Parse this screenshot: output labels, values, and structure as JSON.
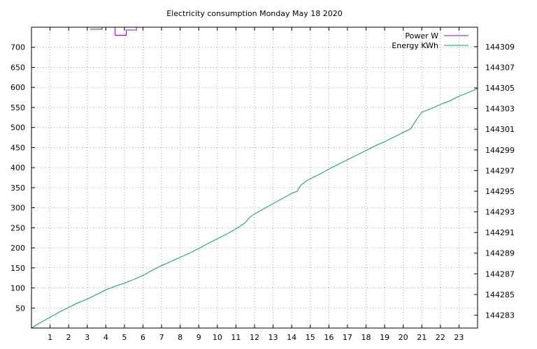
{
  "chart_data": {
    "type": "line",
    "title": "Electricity consumption Monday May 18 2020",
    "xlabel": "",
    "ylabel": "",
    "y2label": "",
    "xlim": [
      0,
      24
    ],
    "ylim": [
      0,
      750
    ],
    "y2lim": [
      144281.75,
      144310.88
    ],
    "grid": true,
    "legend_position": "top-right",
    "x_ticks": [
      1,
      2,
      3,
      4,
      5,
      6,
      7,
      8,
      9,
      10,
      11,
      12,
      13,
      14,
      15,
      16,
      17,
      18,
      19,
      20,
      21,
      22,
      23
    ],
    "y_ticks": [
      50,
      100,
      150,
      200,
      250,
      300,
      350,
      400,
      450,
      500,
      550,
      600,
      650,
      700
    ],
    "y2_ticks": [
      144283,
      144285,
      144287,
      144289,
      144291,
      144293,
      144295,
      144297,
      144299,
      144301,
      144303,
      144305,
      144307,
      144309
    ],
    "series": [
      {
        "name": "Power W",
        "axis": "y1",
        "color": "#9400d3",
        "step": true,
        "x": [
          3.15,
          3.8,
          3.8,
          4.5,
          4.5,
          5.1,
          5.1,
          5.65,
          5.65
        ],
        "y": [
          745,
          745,
          755,
          755,
          730,
          730,
          743,
          743,
          760
        ]
      },
      {
        "name": "Energy KWh",
        "axis": "y2",
        "color": "#009e73",
        "step": false,
        "x": [
          0,
          0.5,
          1,
          1.5,
          2,
          2.5,
          3,
          3.5,
          4,
          4.5,
          5,
          5.5,
          6,
          6.5,
          7,
          7.5,
          8,
          8.5,
          9,
          9.5,
          10,
          10.5,
          11,
          11.5,
          11.75,
          12,
          12.5,
          13,
          13.5,
          14,
          14.3,
          14.4,
          14.5,
          14.8,
          15,
          15.5,
          16,
          16.5,
          17,
          17.5,
          18,
          18.5,
          19,
          19.5,
          20,
          20.4,
          20.7,
          21,
          21.5,
          22,
          22.5,
          23,
          23.5,
          24
        ],
        "y": [
          144281.75,
          144282.3,
          144282.8,
          144283.3,
          144283.75,
          144284.2,
          144284.55,
          144285.0,
          144285.45,
          144285.8,
          144286.1,
          144286.45,
          144286.85,
          144287.35,
          144287.8,
          144288.2,
          144288.6,
          144289.0,
          144289.45,
          144289.95,
          144290.4,
          144290.85,
          144291.35,
          144291.95,
          144292.5,
          144292.8,
          144293.3,
          144293.8,
          144294.3,
          144294.8,
          144295.0,
          144295.35,
          144295.6,
          144296.0,
          144296.2,
          144296.65,
          144297.15,
          144297.6,
          144298.05,
          144298.5,
          144298.95,
          144299.4,
          144299.8,
          144300.25,
          144300.7,
          144301.05,
          144301.9,
          144302.65,
          144303.0,
          144303.4,
          144303.75,
          144304.2,
          144304.55,
          144304.95
        ]
      }
    ]
  }
}
